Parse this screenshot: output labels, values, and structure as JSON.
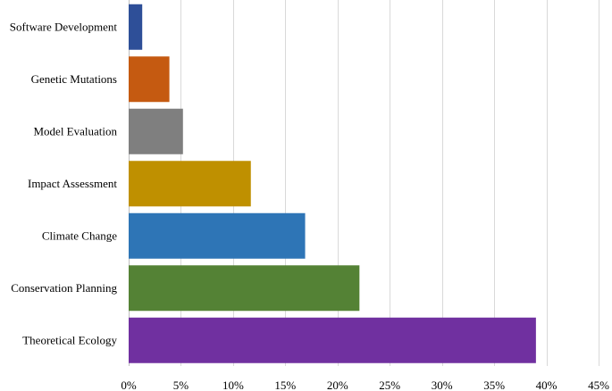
{
  "chart_data": {
    "type": "bar",
    "orientation": "horizontal",
    "title": "",
    "xlabel": "",
    "ylabel": "",
    "categories": [
      "Software Development",
      "Genetic Mutations",
      "Model Evaluation",
      "Impact Assessment",
      "Climate Change",
      "Conservation Planning",
      "Theoretical Ecology"
    ],
    "values": [
      1.3,
      3.9,
      5.2,
      11.7,
      16.9,
      22.1,
      39.0
    ],
    "colors": [
      "#2e4f98",
      "#c55a11",
      "#7f7f7f",
      "#bf9000",
      "#2e75b6",
      "#548235",
      "#7030a0"
    ],
    "value_format": "percent",
    "xlim": [
      0,
      45
    ],
    "xticks": [
      0,
      5,
      10,
      15,
      20,
      25,
      30,
      35,
      40,
      45
    ],
    "xtick_labels": [
      "0%",
      "5%",
      "10%",
      "15%",
      "20%",
      "25%",
      "30%",
      "35%",
      "40%",
      "45%"
    ],
    "grid": "vertical",
    "legend": "none"
  }
}
